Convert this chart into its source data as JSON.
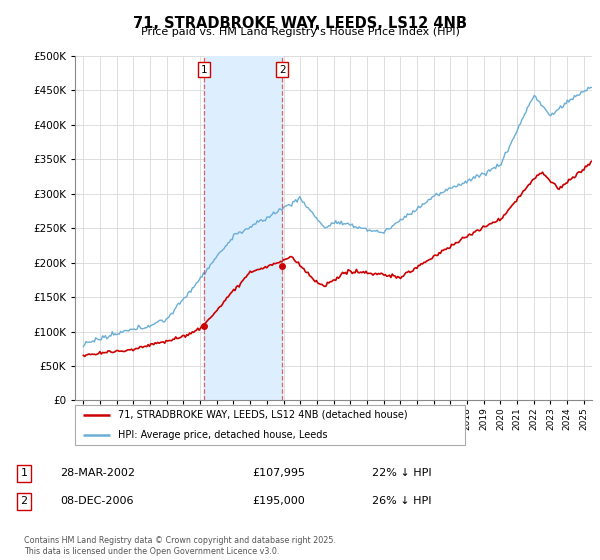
{
  "title": "71, STRADBROKE WAY, LEEDS, LS12 4NB",
  "subtitle": "Price paid vs. HM Land Registry's House Price Index (HPI)",
  "ylim": [
    0,
    500000
  ],
  "yticks": [
    0,
    50000,
    100000,
    150000,
    200000,
    250000,
    300000,
    350000,
    400000,
    450000,
    500000
  ],
  "xlim_start": 1994.5,
  "xlim_end": 2025.5,
  "grid_color": "#d8d8d8",
  "hpi_color": "#6aaed6",
  "price_color": "#cc0000",
  "shade_color": "#ddeeff",
  "purchase1_year": 2002.22,
  "purchase1_price": 107995,
  "purchase1_label": "1",
  "purchase1_date": "28-MAR-2002",
  "purchase1_hpi_pct": "22% ↓ HPI",
  "purchase2_year": 2006.92,
  "purchase2_price": 195000,
  "purchase2_label": "2",
  "purchase2_date": "08-DEC-2006",
  "purchase2_hpi_pct": "26% ↓ HPI",
  "legend_line1": "71, STRADBROKE WAY, LEEDS, LS12 4NB (detached house)",
  "legend_line2": "HPI: Average price, detached house, Leeds",
  "footnote": "Contains HM Land Registry data © Crown copyright and database right 2025.\nThis data is licensed under the Open Government Licence v3.0.",
  "annotation1_info": "£107,995",
  "annotation2_info": "£195,000"
}
